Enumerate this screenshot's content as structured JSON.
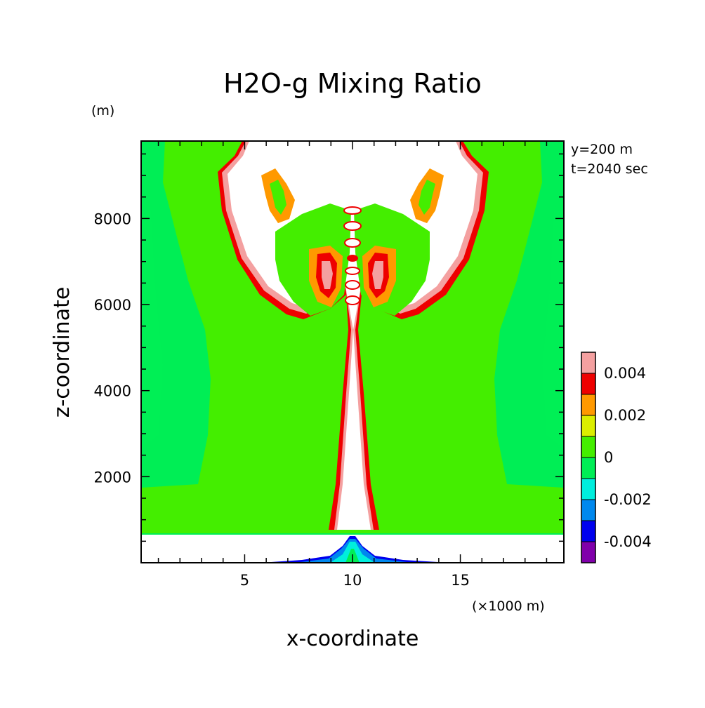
{
  "chart_data": {
    "type": "heatmap",
    "title": "H2O-g Mixing Ratio",
    "xlabel": "x-coordinate",
    "ylabel": "z-coordinate",
    "x_unit": "(×1000 m)",
    "y_unit": "(m)",
    "annotations": [
      "y=200 m",
      "t=2040 sec"
    ],
    "xlim": [
      0.2,
      19.8
    ],
    "ylim": [
      0,
      9800
    ],
    "x_ticks": [
      5,
      10,
      15
    ],
    "y_ticks": [
      2000,
      4000,
      6000,
      8000
    ],
    "x_tick_labels": [
      "5",
      "10",
      "15"
    ],
    "y_tick_labels": [
      "2000",
      "4000",
      "6000",
      "8000"
    ],
    "legend_placement": "right",
    "colorbar": {
      "levels": [
        {
          "color": "#f4a0a0",
          "label": "0.004"
        },
        {
          "color": "#ee0000",
          "label": ""
        },
        {
          "color": "#ff9900",
          "label": "0.002"
        },
        {
          "color": "#dcee00",
          "label": ""
        },
        {
          "color": "#44ee00",
          "label": "0"
        },
        {
          "color": "#00ee55",
          "label": ""
        },
        {
          "color": "#00eedd",
          "label": "-0.002"
        },
        {
          "color": "#0088ee",
          "label": ""
        },
        {
          "color": "#0000ee",
          "label": "-0.004"
        },
        {
          "color": "#8000aa",
          "label": ""
        }
      ],
      "tick_labels": [
        "0.004",
        "0.002",
        "0",
        "-0.002",
        "-0.004"
      ]
    },
    "colors": {
      "background_field": "#44ee00",
      "moist_field": "#00ee55",
      "undefined": "#ffffff",
      "contour_edge": "#ee0000",
      "outer_edge": "#f4a0a0",
      "surface_dry": "#0000ee"
    }
  }
}
